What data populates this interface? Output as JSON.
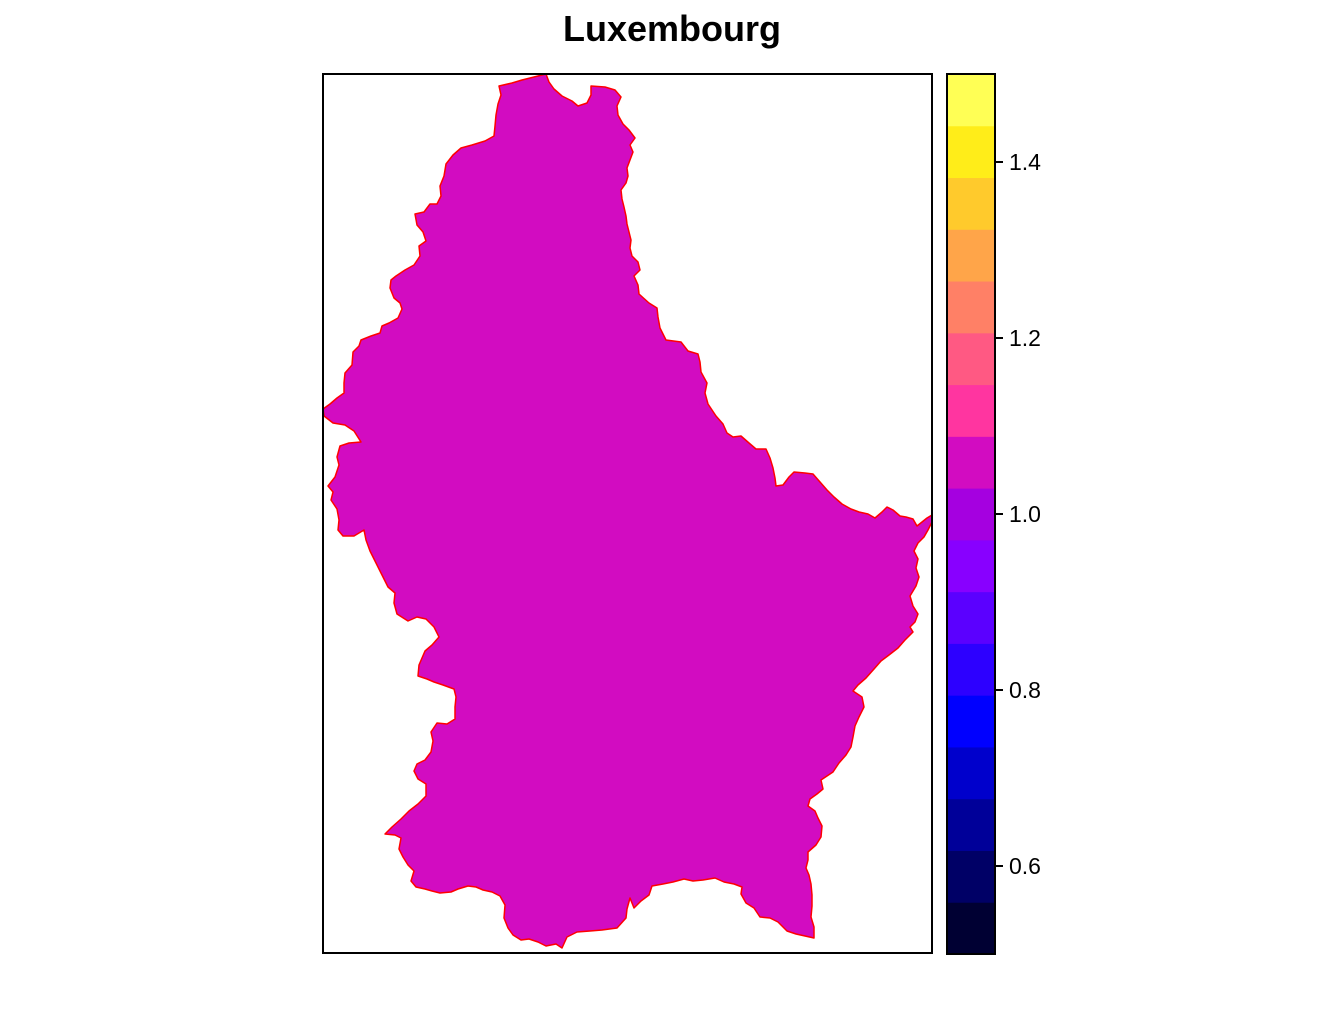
{
  "title": "Luxembourg",
  "map": {
    "region_name": "Luxembourg",
    "region_value": 1.0,
    "fill_color": "#D20CC1",
    "border_color": "#FF0000",
    "frame_color": "#000000",
    "background": "#FFFFFF"
  },
  "colorbar": {
    "range": [
      0.5,
      1.5
    ],
    "tick_values": [
      0.6,
      0.8,
      1.0,
      1.2,
      1.4
    ],
    "tick_labels": [
      "0.6",
      "0.8",
      "1.0",
      "1.2",
      "1.4"
    ],
    "colors": [
      "#000033",
      "#000066",
      "#000099",
      "#0000CC",
      "#0000FF",
      "#2D00FF",
      "#5B00FF",
      "#8800FF",
      "#A500E0",
      "#D20CC1",
      "#FF35A0",
      "#FF5983",
      "#FF8066",
      "#FFA549",
      "#FFCA2C",
      "#FFED19",
      "#FFFF55"
    ]
  }
}
